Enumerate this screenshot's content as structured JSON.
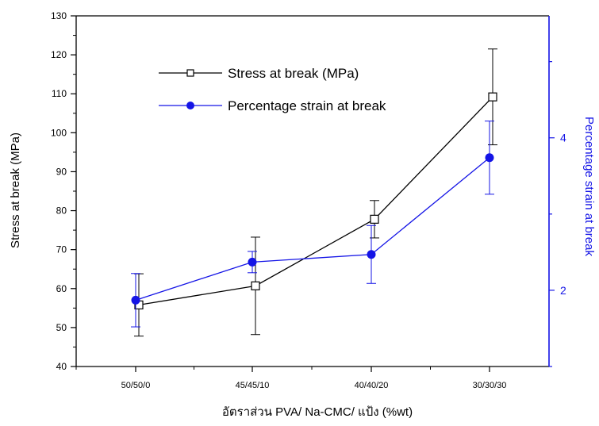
{
  "chart_data": {
    "type": "line",
    "xlabel": "อัตราส่วน PVA/ Na-CMC/ แป้ง (%wt)",
    "categories": [
      "50/50/0",
      "45/45/10",
      "40/40/20",
      "30/30/30"
    ],
    "y_left": {
      "label": "Stress at break (MPa)",
      "lim": [
        40,
        130
      ],
      "ticks": [
        40,
        50,
        60,
        70,
        80,
        90,
        100,
        110,
        120,
        130
      ]
    },
    "y_right": {
      "label": "Percentage strain at break",
      "lim": [
        1,
        5.6
      ],
      "ticks": [
        2,
        4
      ]
    },
    "legend_position": "top-left",
    "series": [
      {
        "name": "Stress at break (MPa)",
        "axis": "left",
        "marker": "open-square",
        "color": "#000000",
        "values": [
          55.8,
          60.7,
          77.8,
          109.2
        ],
        "errors": [
          8.0,
          12.5,
          4.8,
          12.3
        ]
      },
      {
        "name": "Percentage strain at break",
        "axis": "right",
        "marker": "filled-circle",
        "color": "#1414e6",
        "values": [
          1.87,
          2.37,
          2.47,
          3.74
        ],
        "errors": [
          0.35,
          0.14,
          0.38,
          0.48
        ]
      }
    ],
    "colors": {
      "left_axis": "#000000",
      "right_axis": "#1414e6"
    }
  }
}
